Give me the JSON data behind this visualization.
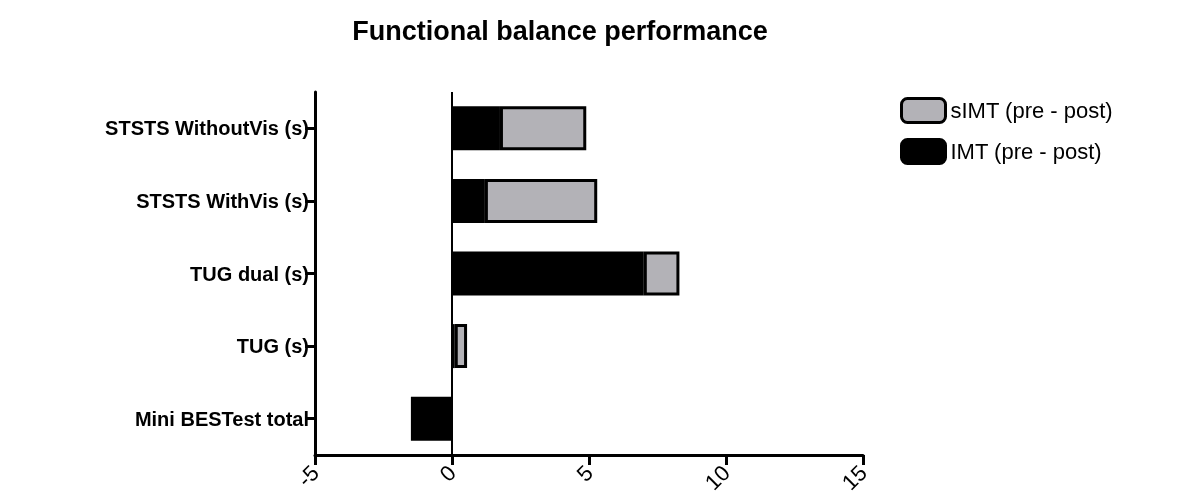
{
  "chart_data": {
    "type": "bar",
    "title": "Functional balance performance",
    "orientation": "horizontal",
    "categories": [
      "STSTS WithoutVis (s)",
      "STSTS WithVis (s)",
      "TUG dual (s)",
      "TUG (s)",
      "Mini BESTest total"
    ],
    "series": [
      {
        "name": "IMT (pre - post)",
        "color": "#000000",
        "values": [
          1.75,
          1.2,
          7.0,
          0.1,
          -1.5
        ]
      },
      {
        "name": "sIMT (pre - post)",
        "color": "#b3b2b7",
        "values": [
          3.15,
          4.1,
          1.3,
          0.45,
          null
        ]
      }
    ],
    "stacked": true,
    "xlim": [
      -5,
      15
    ],
    "xticks": [
      -5,
      0,
      5,
      10,
      15
    ],
    "ref_lines": [
      {
        "axis": "x",
        "value": 0,
        "color": "#000000"
      }
    ],
    "grid": false,
    "legend": "top right"
  }
}
